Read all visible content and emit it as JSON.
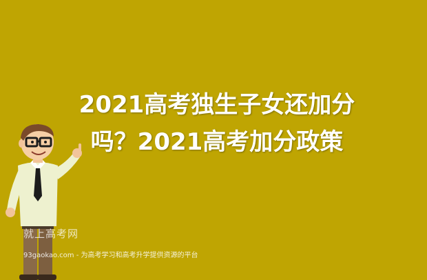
{
  "headline": {
    "line1": "2021高考独生子女还加分",
    "line2": "吗？2021高考加分政策"
  },
  "watermark": {
    "brand": "就上高考网",
    "tagline": "93gaokao.com - 为高考学习和高考升学提供资源的平台"
  },
  "colors": {
    "background": "#bfa502",
    "text": "#ffffff"
  },
  "icons": {
    "mascot": "teacher-with-glasses-pointing-icon"
  }
}
